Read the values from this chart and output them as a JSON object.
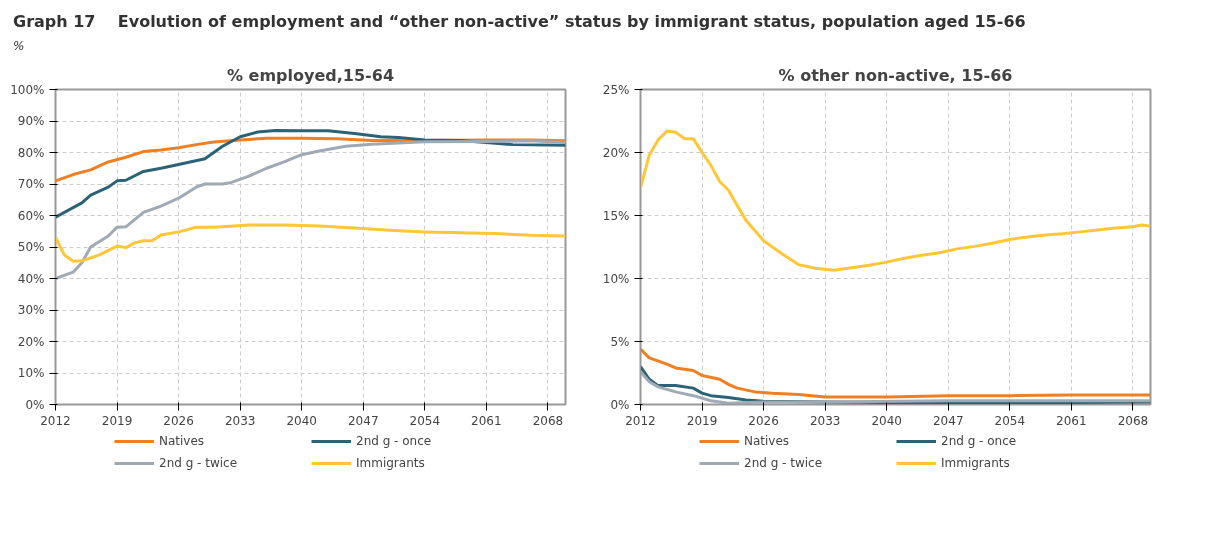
{
  "chart_data": [
    {
      "type": "line",
      "title": "% employed,15-64",
      "annotations": [
        "Graph 17",
        "Evolution of employment and “other non-active” status by immigrant status, population aged 15-66",
        "%"
      ],
      "xlim": [
        2012,
        2070
      ],
      "xticks": [
        2012,
        2019,
        2026,
        2033,
        2040,
        2047,
        2054,
        2061,
        2068
      ],
      "ylim": [
        0,
        100
      ],
      "yticks": [
        {
          "value": 0,
          "label": "0%"
        },
        {
          "value": 10,
          "label": "10%"
        },
        {
          "value": 20,
          "label": "20%"
        },
        {
          "value": 30,
          "label": "30%"
        },
        {
          "value": 40,
          "label": "40%"
        },
        {
          "value": 50,
          "label": "50%"
        },
        {
          "value": 60,
          "label": "60%"
        },
        {
          "value": 70,
          "label": "70%"
        },
        {
          "value": 80,
          "label": "80%"
        },
        {
          "value": 90,
          "label": "90%"
        },
        {
          "value": 100,
          "label": "100%"
        }
      ],
      "grid": true,
      "legend": "bottom",
      "line_style": "solid",
      "series": [
        {
          "name": "Natives",
          "color": "#f07f22",
          "x": [
            2012,
            2014,
            2016,
            2018,
            2020,
            2022,
            2024,
            2026,
            2028,
            2030,
            2033,
            2036,
            2040,
            2044,
            2048,
            2054,
            2061,
            2066,
            2070
          ],
          "values": [
            71,
            73,
            74.5,
            77,
            78.5,
            80.3,
            80.8,
            81.5,
            82.5,
            83.3,
            84,
            84.5,
            84.5,
            84.4,
            83.8,
            83.8,
            84,
            84,
            83.7
          ]
        },
        {
          "name": "2nd g - once",
          "color": "#2b6275",
          "x": [
            2012,
            2015,
            2016,
            2018,
            2019,
            2020,
            2022,
            2024,
            2026,
            2029,
            2031,
            2033,
            2035,
            2037,
            2040,
            2043,
            2046,
            2049,
            2051,
            2054,
            2058,
            2061,
            2064,
            2070
          ],
          "values": [
            59.5,
            64,
            66.5,
            69,
            71,
            71.2,
            74,
            75,
            76.2,
            78,
            82,
            85,
            86.5,
            87,
            86.9,
            86.9,
            86,
            85,
            84.8,
            84,
            83.8,
            83.2,
            82.5,
            82.3
          ]
        },
        {
          "name": "2nd g - twice",
          "color": "#a0aab5",
          "x": [
            2012,
            2014,
            2015,
            2016,
            2018,
            2019,
            2020,
            2022,
            2024,
            2026,
            2028,
            2029,
            2031,
            2032,
            2034,
            2036,
            2038,
            2040,
            2042,
            2045,
            2048,
            2054,
            2061,
            2066,
            2070
          ],
          "values": [
            40,
            42,
            45,
            50,
            53.5,
            56.3,
            56.4,
            61,
            63,
            65.5,
            69,
            70,
            70,
            70.5,
            72.5,
            75,
            77,
            79.3,
            80.5,
            82,
            82.6,
            83.4,
            83.5,
            83.7,
            83.2
          ]
        },
        {
          "name": "Immigrants",
          "color": "#ffc637",
          "x": [
            2012,
            2013,
            2014,
            2015,
            2017,
            2019,
            2020,
            2021,
            2022,
            2023,
            2024,
            2026,
            2027,
            2028,
            2030,
            2034,
            2038,
            2042,
            2046,
            2050,
            2054,
            2058,
            2062,
            2066,
            2070
          ],
          "values": [
            53,
            47.5,
            45.5,
            45.6,
            47.5,
            50.3,
            49.8,
            51.3,
            52,
            52,
            53.8,
            54.8,
            55.5,
            56.3,
            56.3,
            57,
            57,
            56.7,
            56,
            55.3,
            54.8,
            54.5,
            54.3,
            53.7,
            53.5
          ]
        }
      ]
    },
    {
      "type": "line",
      "title": "% other non-active, 15-66",
      "xlim": [
        2012,
        2070
      ],
      "xticks": [
        2012,
        2019,
        2026,
        2033,
        2040,
        2047,
        2054,
        2061,
        2068
      ],
      "ylim": [
        0,
        25
      ],
      "yticks": [
        {
          "value": 0,
          "label": "0%"
        },
        {
          "value": 5,
          "label": "5%"
        },
        {
          "value": 10,
          "label": "10%"
        },
        {
          "value": 15,
          "label": "15%"
        },
        {
          "value": 20,
          "label": "20%"
        },
        {
          "value": 25,
          "label": "25%"
        }
      ],
      "grid": true,
      "legend": "bottom",
      "line_style": "solid",
      "series": [
        {
          "name": "Natives",
          "color": "#f07f22",
          "x": [
            2012,
            2013,
            2015,
            2016,
            2018,
            2019,
            2021,
            2022,
            2023,
            2025,
            2027,
            2030,
            2033,
            2036,
            2040,
            2047,
            2054,
            2061,
            2070
          ],
          "values": [
            4.4,
            3.7,
            3.2,
            2.9,
            2.7,
            2.3,
            2.0,
            1.6,
            1.3,
            1.0,
            0.9,
            0.8,
            0.6,
            0.6,
            0.6,
            0.7,
            0.7,
            0.75,
            0.75
          ]
        },
        {
          "name": "2nd g - once",
          "color": "#2b6275",
          "x": [
            2012,
            2013,
            2014,
            2016,
            2018,
            2019,
            2020,
            2022,
            2024,
            2026,
            2033,
            2040,
            2054,
            2061,
            2070
          ],
          "values": [
            3.0,
            2.0,
            1.5,
            1.5,
            1.3,
            0.9,
            0.7,
            0.55,
            0.35,
            0.25,
            0.2,
            0.15,
            0.1,
            0.15,
            0.2
          ]
        },
        {
          "name": "2nd g - twice",
          "color": "#a0aab5",
          "x": [
            2012,
            2013,
            2014,
            2016,
            2018,
            2020,
            2022,
            2026,
            2033,
            2047,
            2061,
            2070
          ],
          "values": [
            2.6,
            1.8,
            1.4,
            1.0,
            0.7,
            0.3,
            0.1,
            0.2,
            0.2,
            0.3,
            0.3,
            0.3
          ]
        },
        {
          "name": "Immigrants",
          "color": "#ffc637",
          "x": [
            2012,
            2013,
            2014,
            2015,
            2016,
            2017,
            2018,
            2019,
            2020,
            2021,
            2022,
            2023,
            2024,
            2026,
            2028,
            2030,
            2032,
            2034,
            2036,
            2038,
            2040,
            2042,
            2044,
            2046,
            2048,
            2050,
            2052,
            2054,
            2056,
            2058,
            2060,
            2062,
            2064,
            2066,
            2068,
            2069,
            2070
          ],
          "values": [
            17.2,
            19.8,
            21,
            21.7,
            21.6,
            21.1,
            21.1,
            20,
            19,
            17.7,
            17,
            15.8,
            14.6,
            13,
            12,
            11.1,
            10.8,
            10.65,
            10.85,
            11.05,
            11.3,
            11.6,
            11.85,
            12.05,
            12.35,
            12.55,
            12.8,
            13.1,
            13.3,
            13.45,
            13.55,
            13.7,
            13.85,
            14.0,
            14.1,
            14.25,
            14.15
          ]
        }
      ]
    }
  ]
}
